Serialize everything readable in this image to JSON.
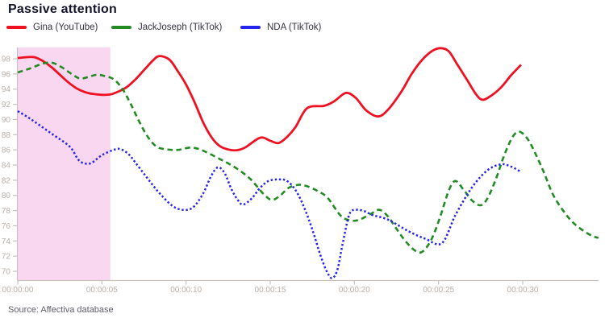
{
  "header": {
    "title": "Passive attention"
  },
  "legend": {
    "items": [
      {
        "label": "Gina (YouTube)",
        "color": "#ee1122"
      },
      {
        "label": "JackJoseph (TikTok)",
        "color": "#228b22"
      },
      {
        "label": "NDA (TikTok)",
        "color": "#2424ee"
      }
    ]
  },
  "source": {
    "text": "Source: Affectiva database"
  },
  "chart_data": {
    "type": "line",
    "title": "Passive attention",
    "xlabel": "",
    "ylabel": "",
    "grid": false,
    "legend_position": "top-left",
    "x_axis": {
      "tick_seconds": [
        0,
        5,
        10,
        15,
        20,
        25,
        30
      ],
      "tick_labels": [
        "00:00:00",
        "00:00:05",
        "00:00:10",
        "00:00:15",
        "00:00:20",
        "00:00:25",
        "00:00:30"
      ],
      "max_seconds": 34.5
    },
    "y_axis": {
      "ticks": [
        98,
        96,
        94,
        92,
        90,
        88,
        86,
        84,
        82,
        80,
        78,
        76,
        74,
        72,
        70
      ],
      "min": 68.8,
      "max": 99.6
    },
    "highlight_region": {
      "x_start_seconds": 0,
      "x_end_seconds": 5.5,
      "color": "#fad7f0"
    },
    "axis_color": "#c9c1bc",
    "tick_label_color": "#b9b0aa",
    "series": [
      {
        "name": "Gina (YouTube)",
        "color": "#ee1122",
        "style": "solid",
        "width": 2.8,
        "points": [
          [
            0,
            98.1
          ],
          [
            0.5,
            98.2
          ],
          [
            1,
            98.2
          ],
          [
            1.5,
            97.7
          ],
          [
            2,
            96.9
          ],
          [
            2.5,
            95.9
          ],
          [
            3,
            94.9
          ],
          [
            3.5,
            94.1
          ],
          [
            4,
            93.6
          ],
          [
            4.5,
            93.35
          ],
          [
            5,
            93.25
          ],
          [
            5.5,
            93.3
          ],
          [
            6,
            93.7
          ],
          [
            6.5,
            94.3
          ],
          [
            7,
            95.3
          ],
          [
            7.5,
            96.5
          ],
          [
            8,
            97.7
          ],
          [
            8.4,
            98.35
          ],
          [
            9,
            97.9
          ],
          [
            9.5,
            96.4
          ],
          [
            10,
            94.6
          ],
          [
            10.5,
            92.3
          ],
          [
            11,
            89.7
          ],
          [
            11.5,
            87.7
          ],
          [
            12,
            86.5
          ],
          [
            12.5,
            86.05
          ],
          [
            13,
            85.95
          ],
          [
            13.5,
            86.3
          ],
          [
            14.4,
            87.6
          ],
          [
            15,
            87.2
          ],
          [
            15.5,
            86.9
          ],
          [
            16,
            87.7
          ],
          [
            16.5,
            89.0
          ],
          [
            17.2,
            91.5
          ],
          [
            18.2,
            91.8
          ],
          [
            18.8,
            92.4
          ],
          [
            19.5,
            93.5
          ],
          [
            20.1,
            92.8
          ],
          [
            20.7,
            91.2
          ],
          [
            21.4,
            90.4
          ],
          [
            22,
            91.3
          ],
          [
            22.8,
            93.7
          ],
          [
            23.4,
            96.0
          ],
          [
            24,
            97.8
          ],
          [
            24.6,
            99.0
          ],
          [
            25.1,
            99.4
          ],
          [
            25.6,
            99.0
          ],
          [
            26.1,
            97.3
          ],
          [
            26.7,
            95.2
          ],
          [
            27.2,
            93.4
          ],
          [
            27.6,
            92.6
          ],
          [
            28.1,
            93.1
          ],
          [
            28.7,
            94.2
          ],
          [
            29.3,
            95.8
          ],
          [
            29.9,
            97.2
          ]
        ]
      },
      {
        "name": "JackJoseph (TikTok)",
        "color": "#228b22",
        "style": "dashed",
        "width": 2.6,
        "points": [
          [
            0,
            96.2
          ],
          [
            0.7,
            96.7
          ],
          [
            1.4,
            97.3
          ],
          [
            2,
            97.5
          ],
          [
            2.6,
            96.9
          ],
          [
            3.2,
            96.0
          ],
          [
            3.7,
            95.4
          ],
          [
            4.2,
            95.6
          ],
          [
            4.7,
            95.9
          ],
          [
            5.2,
            95.7
          ],
          [
            5.7,
            95.3
          ],
          [
            6.2,
            94.1
          ],
          [
            6.7,
            92.1
          ],
          [
            7.2,
            89.8
          ],
          [
            7.7,
            87.8
          ],
          [
            8.2,
            86.5
          ],
          [
            8.7,
            86.1
          ],
          [
            9.5,
            86.0
          ],
          [
            10.3,
            86.3
          ],
          [
            11,
            85.9
          ],
          [
            12,
            84.8
          ],
          [
            12.9,
            83.7
          ],
          [
            13.8,
            82.2
          ],
          [
            14.6,
            80.2
          ],
          [
            15.1,
            79.4
          ],
          [
            15.6,
            80.0
          ],
          [
            16.1,
            81.0
          ],
          [
            16.7,
            81.4
          ],
          [
            17.2,
            81.2
          ],
          [
            17.8,
            80.6
          ],
          [
            18.4,
            79.7
          ],
          [
            19.2,
            77.3
          ],
          [
            19.8,
            76.7
          ],
          [
            20.3,
            76.8
          ],
          [
            21,
            77.6
          ],
          [
            21.5,
            78.1
          ],
          [
            22,
            77.2
          ],
          [
            22.5,
            75.6
          ],
          [
            23.1,
            73.8
          ],
          [
            23.7,
            72.6
          ],
          [
            24.1,
            72.7
          ],
          [
            24.6,
            74.3
          ],
          [
            25.1,
            77.2
          ],
          [
            25.6,
            80.6
          ],
          [
            26,
            81.9
          ],
          [
            26.5,
            80.7
          ],
          [
            27,
            79.3
          ],
          [
            27.5,
            78.7
          ],
          [
            27.9,
            79.6
          ],
          [
            28.4,
            82.1
          ],
          [
            28.9,
            85.3
          ],
          [
            29.4,
            87.7
          ],
          [
            29.8,
            88.4
          ],
          [
            30.3,
            87.4
          ],
          [
            30.8,
            85.3
          ],
          [
            31.3,
            82.8
          ],
          [
            31.8,
            80.1
          ],
          [
            32.4,
            78.0
          ],
          [
            33,
            76.4
          ],
          [
            33.7,
            75.2
          ],
          [
            34.2,
            74.6
          ],
          [
            34.5,
            74.4
          ]
        ]
      },
      {
        "name": "NDA (TikTok)",
        "color": "#2424ee",
        "style": "dotted",
        "width": 2.5,
        "points": [
          [
            0,
            91.1
          ],
          [
            0.6,
            90.3
          ],
          [
            1.2,
            89.4
          ],
          [
            2.1,
            88.0
          ],
          [
            3.1,
            86.4
          ],
          [
            3.6,
            84.7
          ],
          [
            4,
            84.2
          ],
          [
            4.4,
            84.3
          ],
          [
            5,
            85.3
          ],
          [
            5.7,
            86.0
          ],
          [
            6.1,
            86.1
          ],
          [
            6.6,
            85.4
          ],
          [
            7.1,
            84.0
          ],
          [
            7.9,
            81.7
          ],
          [
            8.5,
            80.1
          ],
          [
            9.2,
            78.6
          ],
          [
            9.8,
            78.1
          ],
          [
            10.4,
            78.4
          ],
          [
            11,
            80.2
          ],
          [
            11.5,
            82.6
          ],
          [
            11.9,
            83.7
          ],
          [
            12.3,
            82.9
          ],
          [
            12.7,
            80.8
          ],
          [
            13.1,
            79.3
          ],
          [
            13.4,
            78.8
          ],
          [
            13.9,
            79.6
          ],
          [
            14.4,
            81.0
          ],
          [
            14.9,
            81.9
          ],
          [
            15.5,
            82.1
          ],
          [
            16,
            81.9
          ],
          [
            16.5,
            80.7
          ],
          [
            17,
            78.5
          ],
          [
            17.5,
            75.5
          ],
          [
            18,
            72.0
          ],
          [
            18.4,
            69.8
          ],
          [
            18.7,
            69.1
          ],
          [
            19,
            70.3
          ],
          [
            19.3,
            73.6
          ],
          [
            19.7,
            77.5
          ],
          [
            20.1,
            78.1
          ],
          [
            20.6,
            77.9
          ],
          [
            21.1,
            77.4
          ],
          [
            22,
            76.8
          ],
          [
            23.2,
            75.3
          ],
          [
            24.2,
            74.3
          ],
          [
            25.2,
            73.7
          ],
          [
            26,
            77.4
          ],
          [
            27,
            81.1
          ],
          [
            27.9,
            83.3
          ],
          [
            28.7,
            84.1
          ],
          [
            29.3,
            83.8
          ],
          [
            29.9,
            83.1
          ]
        ]
      }
    ]
  }
}
